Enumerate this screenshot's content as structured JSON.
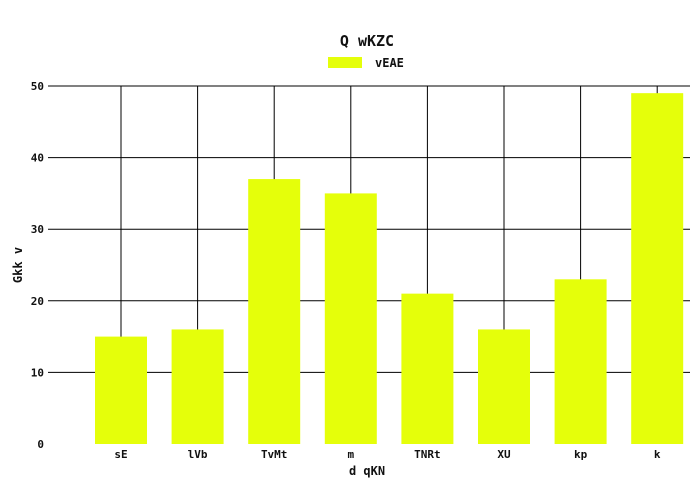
{
  "chart_data": {
    "type": "bar",
    "title": "Q wKZC",
    "xlabel": "d qKN",
    "ylabel": "Gkk v",
    "categories": [
      "sE",
      "lVb",
      "TvMt",
      "m",
      "TNRt",
      "XU",
      "kp",
      "k"
    ],
    "series": [
      {
        "name": "vEAE",
        "values": [
          15,
          16,
          37,
          35,
          21,
          16,
          23,
          49
        ],
        "color": "#e5ff0a"
      }
    ],
    "ylim": [
      0,
      50
    ],
    "yticks": [
      0,
      10,
      20,
      30,
      40,
      50
    ],
    "grid": true,
    "legend_position": "top-center"
  }
}
